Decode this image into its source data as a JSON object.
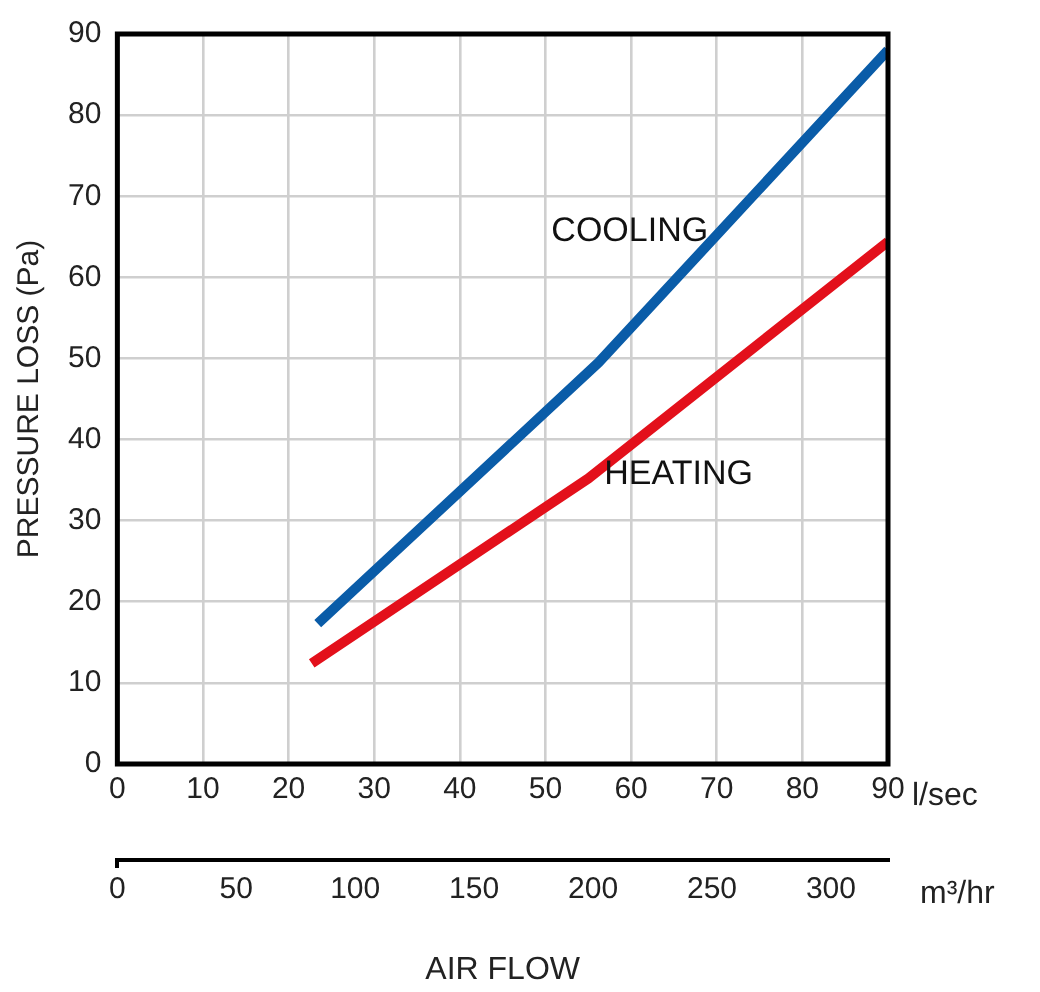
{
  "chart_data": {
    "type": "line",
    "xlabel": "l/sec",
    "x2label": "m³/hr",
    "ylabel": "PRESSURE LOSS (Pa)",
    "annotations": [
      "AIR FLOW"
    ],
    "xlim": [
      0,
      90
    ],
    "xticks": [
      0,
      10,
      20,
      30,
      40,
      50,
      60,
      70,
      80,
      90
    ],
    "x2lim": [
      0,
      324
    ],
    "x2ticks": [
      0,
      50,
      100,
      150,
      200,
      250,
      300
    ],
    "ylim": [
      0,
      90
    ],
    "yticks": [
      0,
      10,
      20,
      30,
      40,
      50,
      60,
      70,
      80,
      90
    ],
    "grid": true,
    "legend": false,
    "marker": "none",
    "line_style": "solid",
    "series": [
      {
        "name": "COOLING",
        "color": "#0a5ca8",
        "x": [
          23.4,
          56.2,
          90
        ],
        "values": [
          17.3,
          49.5,
          88
        ]
      },
      {
        "name": "HEATING",
        "color": "#e3101b",
        "x": [
          22.7,
          55,
          90
        ],
        "values": [
          12.4,
          35.2,
          64.4
        ]
      }
    ]
  }
}
